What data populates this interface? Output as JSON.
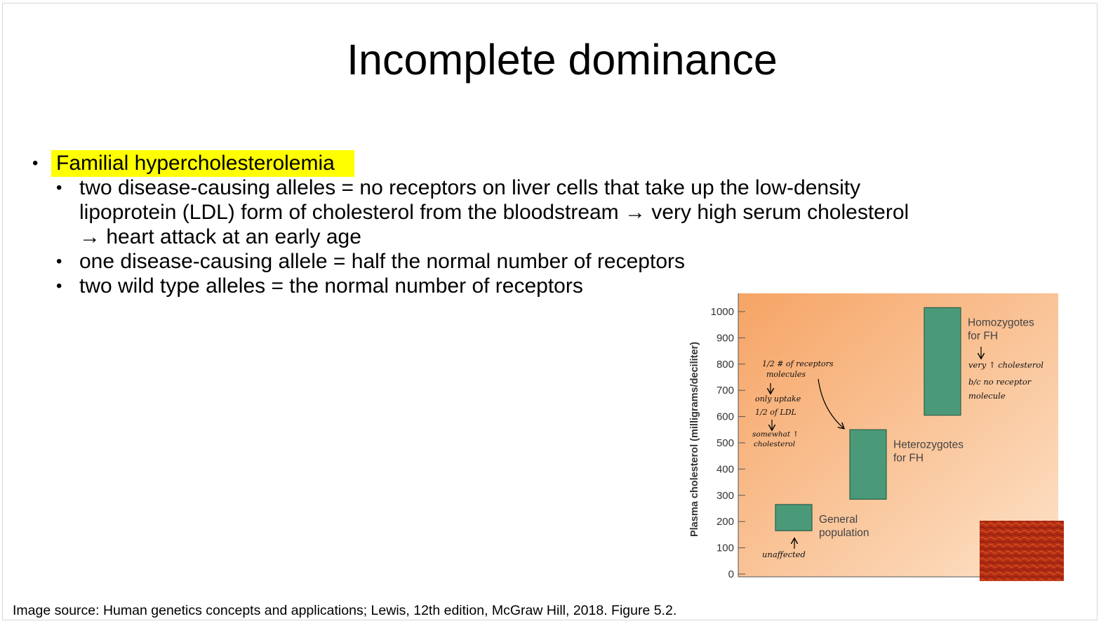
{
  "slide": {
    "title": "Incomplete dominance",
    "bullet_main": "Familial hypercholesterolemia",
    "sub_bullets": [
      {
        "line1": "two disease-causing alleles  = no receptors on liver cells that take up the low-density",
        "line2": "lipoprotein (LDL) form of cholesterol from the bloodstream → very high serum cholesterol",
        "line3": "→ heart attack at an early age"
      },
      {
        "line1": "one disease-causing allele = half the normal number of receptors"
      },
      {
        "line1": "two wild type alleles = the normal number of receptors"
      }
    ],
    "caption": "Image source: Human genetics concepts and applications; Lewis, 12th edition, McGraw Hill, 2018. Figure 5.2."
  },
  "colors": {
    "highlight": "#ffff00",
    "bar": "#4a9a7a",
    "bar_border": "#2c5e48",
    "bg_gradient_start": "#f6a465",
    "bg_gradient_end": "#fde2c8",
    "tissue": "#b22c14"
  },
  "chart_data": {
    "type": "bar",
    "ylabel": "Plasma cholesterol (milligrams/deciliter)",
    "ylim": [
      0,
      1000
    ],
    "yticks": [
      0,
      100,
      200,
      300,
      400,
      500,
      600,
      700,
      800,
      900,
      1000
    ],
    "bars": [
      {
        "label_line1": "General",
        "label_line2": "population",
        "low": 165,
        "high": 265
      },
      {
        "label_line1": "Heterozygotes",
        "label_line2": "for FH",
        "low": 285,
        "high": 550
      },
      {
        "label_line1": "Homozygotes",
        "label_line2": "for FH",
        "low": 605,
        "high": 1015
      }
    ],
    "annotations": {
      "left_1": "1/2 # of receptors",
      "left_2": "molecules",
      "left_3": "only uptake",
      "left_4": "1/2  of LDL",
      "left_5": "somewhat ↑",
      "left_6": "cholesterol",
      "general_note": "unaffected",
      "homo_1": "very ↑ cholesterol",
      "homo_2": "b/c  no  receptor",
      "homo_3": "molecule"
    }
  }
}
